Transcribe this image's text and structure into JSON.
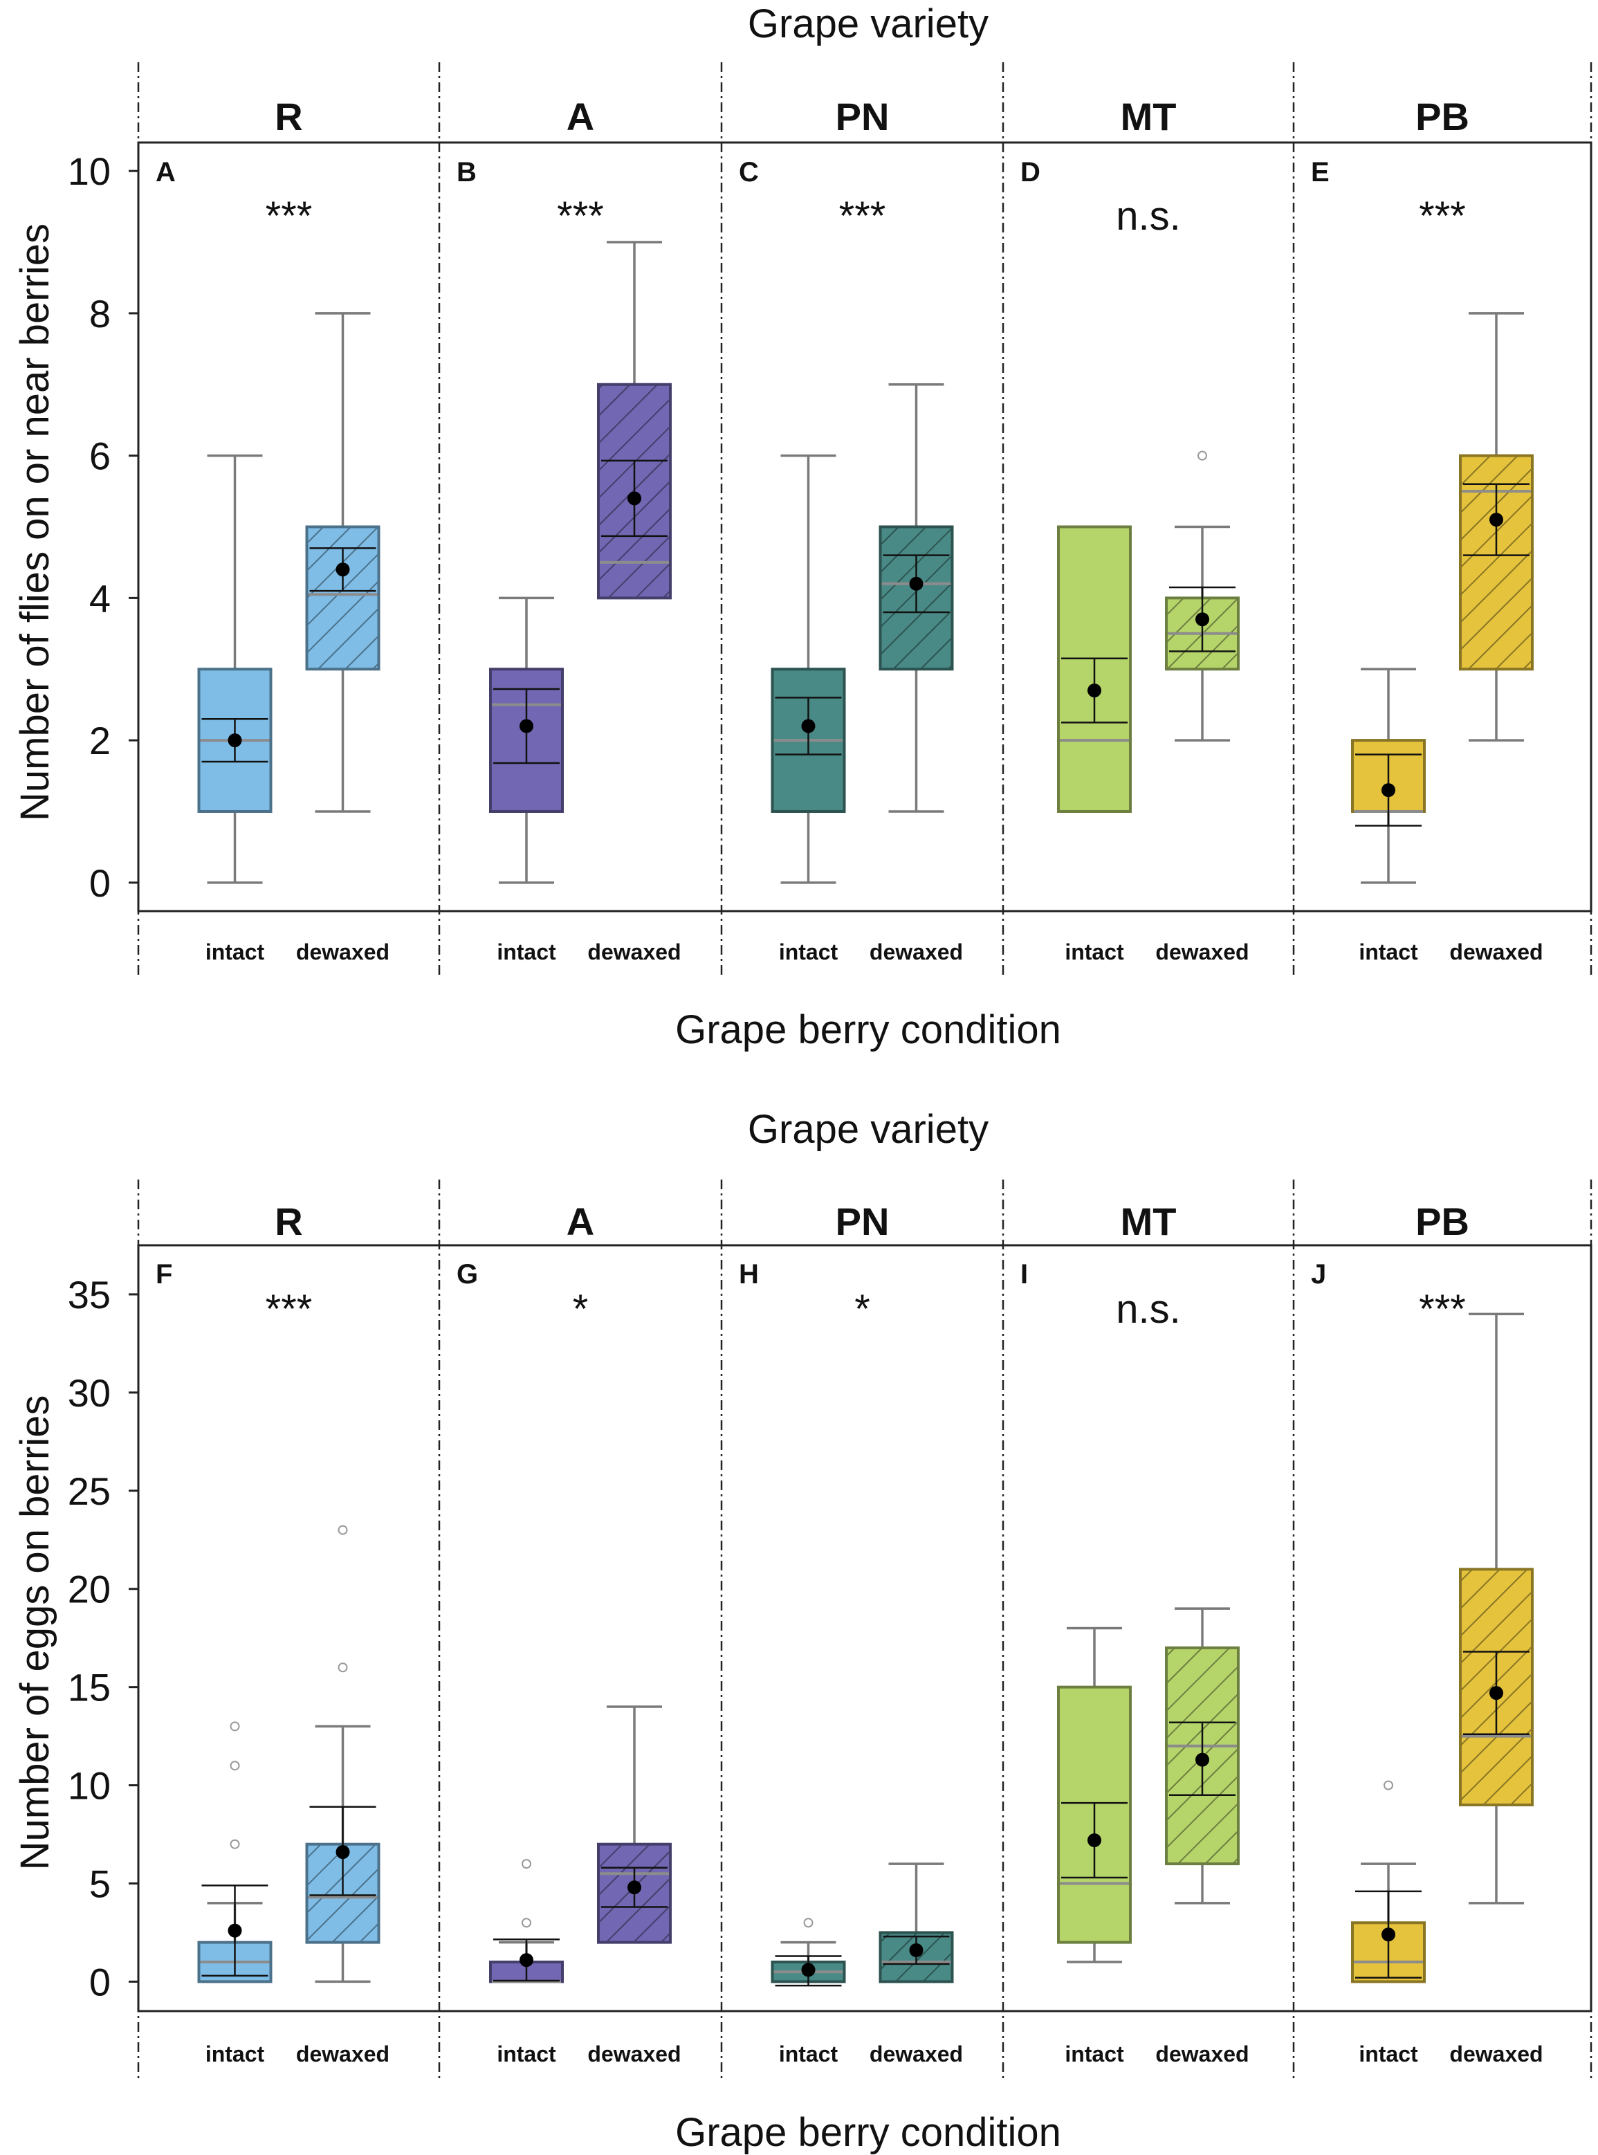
{
  "chart_data": [
    {
      "type": "box",
      "title": "Grape variety",
      "xlabel": "Grape berry condition",
      "ylabel": "Number of flies on or near berries",
      "ylim": [
        -0.4,
        10.4
      ],
      "yticks": [
        0,
        2,
        4,
        6,
        8,
        10
      ],
      "conditions": [
        "intact",
        "dewaxed"
      ],
      "varieties": [
        "R",
        "A",
        "PN",
        "MT",
        "PB"
      ],
      "colors": [
        "#7fbde6",
        "#7267b2",
        "#4a8a86",
        "#b5d46a",
        "#e5c33c"
      ],
      "panels": [
        {
          "letter": "A",
          "variety": "R",
          "significance": "***",
          "boxes": [
            {
              "condition": "intact",
              "min": 0,
              "q1": 1,
              "median": 2,
              "q3": 3,
              "max": 6,
              "mean": 2.0,
              "ci_low": 1.7,
              "ci_high": 2.3,
              "outliers": []
            },
            {
              "condition": "dewaxed",
              "min": 1,
              "q1": 3,
              "median": 4.05,
              "q3": 5,
              "max": 8,
              "mean": 4.4,
              "ci_low": 4.1,
              "ci_high": 4.7,
              "outliers": []
            }
          ]
        },
        {
          "letter": "B",
          "variety": "A",
          "significance": "***",
          "boxes": [
            {
              "condition": "intact",
              "min": 0,
              "q1": 1,
              "median": 2.5,
              "q3": 3,
              "max": 4,
              "mean": 2.2,
              "ci_low": 1.68,
              "ci_high": 2.72,
              "outliers": []
            },
            {
              "condition": "dewaxed",
              "min": 4,
              "q1": 4,
              "median": 4.5,
              "q3": 7,
              "max": 9,
              "mean": 5.4,
              "ci_low": 4.87,
              "ci_high": 5.93,
              "outliers": []
            }
          ]
        },
        {
          "letter": "C",
          "variety": "PN",
          "significance": "***",
          "boxes": [
            {
              "condition": "intact",
              "min": 0,
              "q1": 1,
              "median": 2,
              "q3": 3,
              "max": 6,
              "mean": 2.2,
              "ci_low": 1.8,
              "ci_high": 2.6,
              "outliers": []
            },
            {
              "condition": "dewaxed",
              "min": 1,
              "q1": 3,
              "median": 4.2,
              "q3": 5,
              "max": 7,
              "mean": 4.2,
              "ci_low": 3.8,
              "ci_high": 4.6,
              "outliers": []
            }
          ]
        },
        {
          "letter": "D",
          "variety": "MT",
          "significance": "n.s.",
          "boxes": [
            {
              "condition": "intact",
              "min": 1,
              "q1": 1,
              "median": 2,
              "q3": 5,
              "max": 5,
              "mean": 2.7,
              "ci_low": 2.25,
              "ci_high": 3.15,
              "outliers": []
            },
            {
              "condition": "dewaxed",
              "min": 2,
              "q1": 3,
              "median": 3.5,
              "q3": 4,
              "max": 5,
              "mean": 3.7,
              "ci_low": 3.25,
              "ci_high": 4.15,
              "outliers": [
                6
              ]
            }
          ]
        },
        {
          "letter": "E",
          "variety": "PB",
          "significance": "***",
          "boxes": [
            {
              "condition": "intact",
              "min": 0,
              "q1": 1,
              "median": 1,
              "q3": 2,
              "max": 3,
              "mean": 1.3,
              "ci_low": 0.8,
              "ci_high": 1.8,
              "outliers": []
            },
            {
              "condition": "dewaxed",
              "min": 2,
              "q1": 3,
              "median": 5.5,
              "q3": 6,
              "max": 8,
              "mean": 5.1,
              "ci_low": 4.6,
              "ci_high": 5.6,
              "outliers": []
            }
          ]
        }
      ]
    },
    {
      "type": "box",
      "title": "Grape variety",
      "xlabel": "Grape berry condition",
      "ylabel": "Number of eggs on berries",
      "ylim": [
        -1.5,
        37.5
      ],
      "yticks": [
        0,
        5,
        10,
        15,
        20,
        25,
        30,
        35
      ],
      "conditions": [
        "intact",
        "dewaxed"
      ],
      "varieties": [
        "R",
        "A",
        "PN",
        "MT",
        "PB"
      ],
      "colors": [
        "#7fbde6",
        "#7267b2",
        "#4a8a86",
        "#b5d46a",
        "#e5c33c"
      ],
      "panels": [
        {
          "letter": "F",
          "variety": "R",
          "significance": "***",
          "boxes": [
            {
              "condition": "intact",
              "min": 0,
              "q1": 0,
              "median": 1,
              "q3": 2,
              "max": 4,
              "mean": 2.6,
              "ci_low": 0.3,
              "ci_high": 4.9,
              "outliers": [
                7,
                11,
                13
              ]
            },
            {
              "condition": "dewaxed",
              "min": 0,
              "q1": 2,
              "median": 4.3,
              "q3": 7,
              "max": 13,
              "mean": 6.6,
              "ci_low": 4.4,
              "ci_high": 8.9,
              "outliers": [
                16,
                23
              ]
            }
          ]
        },
        {
          "letter": "G",
          "variety": "A",
          "significance": "*",
          "boxes": [
            {
              "condition": "intact",
              "min": 0,
              "q1": 0,
              "median": 0,
              "q3": 1,
              "max": 2,
              "mean": 1.1,
              "ci_low": 0.05,
              "ci_high": 2.15,
              "outliers": [
                3,
                6
              ]
            },
            {
              "condition": "dewaxed",
              "min": 2,
              "q1": 2,
              "median": 5.5,
              "q3": 7,
              "max": 14,
              "mean": 4.8,
              "ci_low": 3.8,
              "ci_high": 5.8,
              "outliers": []
            }
          ]
        },
        {
          "letter": "H",
          "variety": "PN",
          "significance": "*",
          "boxes": [
            {
              "condition": "intact",
              "min": 0,
              "q1": 0,
              "median": 0.5,
              "q3": 1,
              "max": 2,
              "mean": 0.6,
              "ci_low": -0.2,
              "ci_high": 1.3,
              "outliers": [
                3
              ]
            },
            {
              "condition": "dewaxed",
              "min": 0,
              "q1": 0,
              "median": 1,
              "q3": 2.5,
              "max": 6,
              "mean": 1.6,
              "ci_low": 0.9,
              "ci_high": 2.3,
              "outliers": []
            }
          ]
        },
        {
          "letter": "I",
          "variety": "MT",
          "significance": "n.s.",
          "boxes": [
            {
              "condition": "intact",
              "min": 1,
              "q1": 2,
              "median": 5,
              "q3": 15,
              "max": 18,
              "mean": 7.2,
              "ci_low": 5.3,
              "ci_high": 9.1,
              "outliers": []
            },
            {
              "condition": "dewaxed",
              "min": 4,
              "q1": 6,
              "median": 12,
              "q3": 17,
              "max": 19,
              "mean": 11.3,
              "ci_low": 9.5,
              "ci_high": 13.2,
              "outliers": []
            }
          ]
        },
        {
          "letter": "J",
          "variety": "PB",
          "significance": "***",
          "boxes": [
            {
              "condition": "intact",
              "min": 0,
              "q1": 0,
              "median": 1,
              "q3": 3,
              "max": 6,
              "mean": 2.4,
              "ci_low": 0.2,
              "ci_high": 4.6,
              "outliers": [
                10
              ]
            },
            {
              "condition": "dewaxed",
              "min": 4,
              "q1": 9,
              "median": 12.5,
              "q3": 21,
              "max": 34,
              "mean": 14.7,
              "ci_low": 12.6,
              "ci_high": 16.8,
              "outliers": []
            }
          ]
        }
      ]
    }
  ]
}
